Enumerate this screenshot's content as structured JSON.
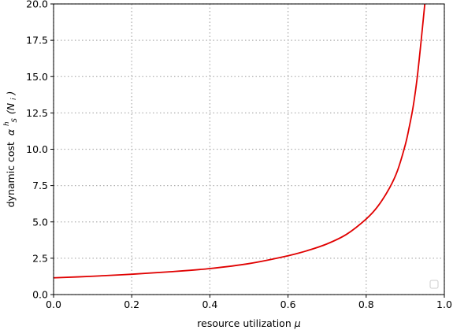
{
  "chart_data": {
    "type": "line",
    "xlabel": "resource utilization",
    "xlabel_symbol": "μ",
    "ylabel": "dynamic cost",
    "ylabel_math": {
      "base": "α",
      "sup": "h",
      "sub": "S",
      "arg": "(N",
      "arg_sub": "i",
      "close": ")"
    },
    "xlim": [
      0.0,
      1.0
    ],
    "ylim": [
      0.0,
      20.0
    ],
    "xticks": [
      "0.0",
      "0.2",
      "0.4",
      "0.6",
      "0.8",
      "1.0"
    ],
    "yticks": [
      "0.0",
      "2.5",
      "5.0",
      "7.5",
      "10.0",
      "12.5",
      "15.0",
      "17.5",
      "20.0"
    ],
    "grid": true,
    "legend": {
      "placement": "bottom-right",
      "entries": []
    },
    "series": [
      {
        "color": "#e00000",
        "x": [
          0.0,
          0.1,
          0.2,
          0.3,
          0.4,
          0.5,
          0.6,
          0.65,
          0.7,
          0.75,
          0.8,
          0.83,
          0.86,
          0.88,
          0.9,
          0.91,
          0.92,
          0.93,
          0.94,
          0.95
        ],
        "y": [
          1.15,
          1.26,
          1.4,
          1.57,
          1.79,
          2.13,
          2.67,
          3.03,
          3.49,
          4.15,
          5.2,
          6.08,
          7.35,
          8.52,
          10.3,
          11.5,
          12.9,
          14.8,
          17.3,
          20.0
        ]
      }
    ]
  }
}
